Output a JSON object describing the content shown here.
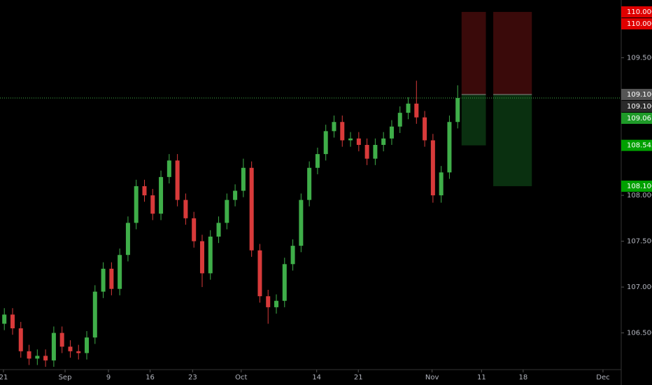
{
  "chart_data": {
    "type": "candlestick",
    "x": [
      0.5,
      1.45,
      2.4,
      3.35,
      4.3,
      5.25,
      6.2,
      7.15,
      8.1,
      9.05,
      10,
      10.95,
      11.9,
      12.85,
      13.8,
      14.75,
      15.7,
      16.65,
      17.6,
      18.55,
      19.5,
      20.45,
      21.4,
      22.35,
      23.3,
      24.25,
      25.2,
      26.15,
      27.1,
      28.05,
      29,
      29.95,
      30.9,
      31.85,
      32.8,
      33.75,
      34.7,
      35.65,
      36.6,
      37.55,
      38.5,
      39.45,
      40.4,
      41.35,
      42.3,
      43.25,
      44.2,
      45.15,
      46.1,
      47.05,
      48,
      48.95,
      49.9,
      50.85,
      51.8,
      52.75
    ],
    "open": [
      106.6,
      106.7,
      106.55,
      106.3,
      106.22,
      106.25,
      106.2,
      106.5,
      106.35,
      106.3,
      106.28,
      106.45,
      106.95,
      107.2,
      106.98,
      107.35,
      107.7,
      108.1,
      108.0,
      107.8,
      108.2,
      108.38,
      107.95,
      107.75,
      107.5,
      107.15,
      107.55,
      107.7,
      107.95,
      108.05,
      108.3,
      107.4,
      106.9,
      106.78,
      106.85,
      107.25,
      107.45,
      107.95,
      108.3,
      108.45,
      108.7,
      108.8,
      108.6,
      108.62,
      108.55,
      108.4,
      108.55,
      108.62,
      108.75,
      108.9,
      109.0,
      108.85,
      108.6,
      108.0,
      108.25,
      108.8
    ],
    "high": [
      106.77,
      106.77,
      106.62,
      106.37,
      106.32,
      106.32,
      106.57,
      106.57,
      106.42,
      106.37,
      106.52,
      107.02,
      107.27,
      107.27,
      107.42,
      107.77,
      108.17,
      108.17,
      108.07,
      108.27,
      108.45,
      108.45,
      108.02,
      107.82,
      107.57,
      107.62,
      107.77,
      108.02,
      108.12,
      108.4,
      108.37,
      107.47,
      106.97,
      106.92,
      107.32,
      107.52,
      108.02,
      108.37,
      108.52,
      108.77,
      108.87,
      108.87,
      108.69,
      108.69,
      108.62,
      108.62,
      108.69,
      108.82,
      108.97,
      109.07,
      109.25,
      108.92,
      108.67,
      108.32,
      108.87,
      109.2
    ],
    "low": [
      106.53,
      106.48,
      106.23,
      106.15,
      106.15,
      106.13,
      106.13,
      106.28,
      106.23,
      106.21,
      106.21,
      106.38,
      106.88,
      106.91,
      106.91,
      107.28,
      107.63,
      107.93,
      107.73,
      107.73,
      108.13,
      107.88,
      107.68,
      107.43,
      107.0,
      107.08,
      107.48,
      107.63,
      107.88,
      107.98,
      107.33,
      106.83,
      106.6,
      106.71,
      106.78,
      107.18,
      107.38,
      107.88,
      108.23,
      108.38,
      108.63,
      108.53,
      108.53,
      108.48,
      108.33,
      108.33,
      108.48,
      108.55,
      108.68,
      108.83,
      108.78,
      108.53,
      107.92,
      107.92,
      108.18,
      108.73
    ],
    "close": [
      106.7,
      106.55,
      106.3,
      106.22,
      106.25,
      106.2,
      106.5,
      106.35,
      106.3,
      106.28,
      106.45,
      106.95,
      107.2,
      106.98,
      107.35,
      107.7,
      108.1,
      108.0,
      107.8,
      108.2,
      108.38,
      107.95,
      107.75,
      107.5,
      107.15,
      107.55,
      107.7,
      107.95,
      108.05,
      108.3,
      107.4,
      106.9,
      106.78,
      106.85,
      107.25,
      107.45,
      107.95,
      108.3,
      108.45,
      108.7,
      108.8,
      108.6,
      108.62,
      108.55,
      108.4,
      108.55,
      108.62,
      108.75,
      108.9,
      109.0,
      108.85,
      108.6,
      108.0,
      108.25,
      108.8,
      109.061
    ],
    "up_color": "#3fae49",
    "down_color": "#d83a3a",
    "xlim": [
      0,
      71.6
    ],
    "ylim": [
      106.1,
      110.13
    ],
    "xticks": [
      {
        "value": 0.4,
        "label": "21"
      },
      {
        "value": 7.5,
        "label": "Sep"
      },
      {
        "value": 12.5,
        "label": "9"
      },
      {
        "value": 17.3,
        "label": "16"
      },
      {
        "value": 22.2,
        "label": "23"
      },
      {
        "value": 27.8,
        "label": "Oct"
      },
      {
        "value": 36.5,
        "label": "14"
      },
      {
        "value": 41.3,
        "label": "21"
      },
      {
        "value": 49.8,
        "label": "Nov"
      },
      {
        "value": 55.5,
        "label": "11"
      },
      {
        "value": 60.3,
        "label": "18"
      },
      {
        "value": 69.5,
        "label": "Dec"
      }
    ],
    "yticks": [
      {
        "value": 109.5,
        "label": "109.500"
      },
      {
        "value": 108.0,
        "label": "108.000"
      },
      {
        "value": 107.5,
        "label": "107.500"
      },
      {
        "value": 107.0,
        "label": "107.000"
      },
      {
        "value": 106.5,
        "label": "106.500"
      }
    ],
    "last_price_line": 109.061,
    "positions": [
      {
        "x": [
          53.2,
          56.0
        ],
        "stop": 110.0,
        "entry": 109.1,
        "target": 108.545
      },
      {
        "x": [
          56.85,
          61.3
        ],
        "stop": 110.0,
        "entry": 109.1,
        "target": 108.1
      }
    ],
    "price_labels": [
      {
        "value": 110.0,
        "label": "110.000",
        "color": "#e00000"
      },
      {
        "value": 110.0,
        "label": "110.000",
        "color": "#e00000"
      },
      {
        "value": 109.1,
        "label": "109.100",
        "color": "#555555"
      },
      {
        "value": 109.1,
        "label": "109.100",
        "color": "#2a2a2a"
      },
      {
        "value": 109.061,
        "label": "109.061",
        "color": "#1e9a28"
      },
      {
        "value": 108.545,
        "label": "108.545",
        "color": "#00a000"
      },
      {
        "value": 108.1,
        "label": "108.100",
        "color": "#00a000"
      }
    ]
  }
}
